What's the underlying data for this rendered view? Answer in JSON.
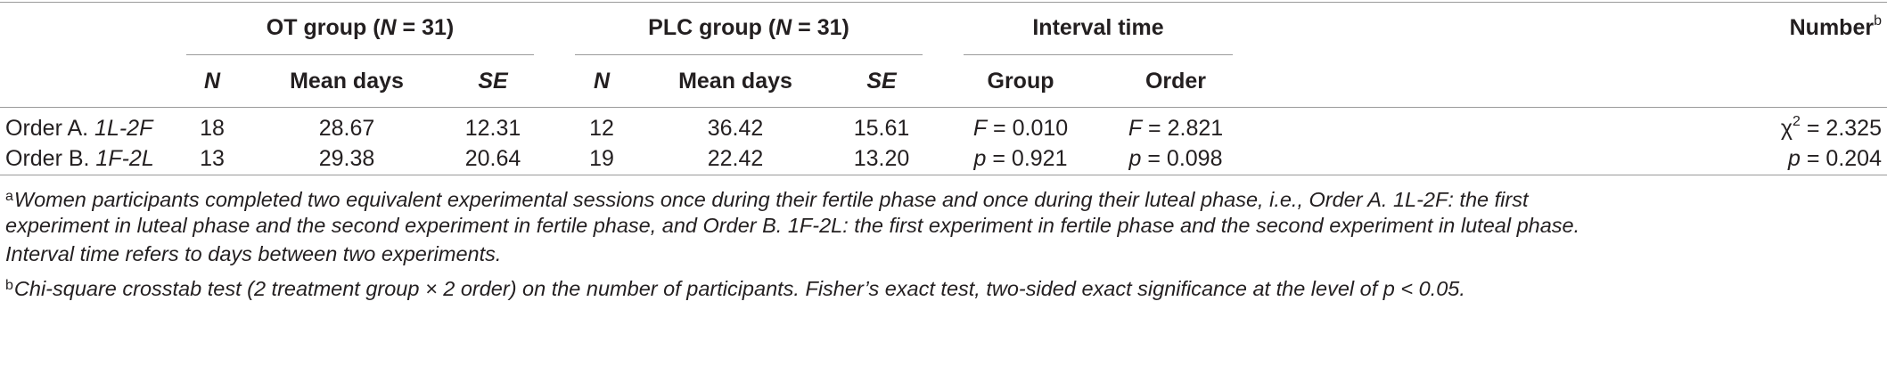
{
  "table": {
    "group_headers": {
      "ot_prefix": "OT group (",
      "ot_n": "N",
      "ot_suffix": " = 31)",
      "plc_prefix": "PLC group (",
      "plc_n": "N",
      "plc_suffix": " = 31)",
      "interval": "Interval time",
      "number": "Number",
      "number_sup": "b"
    },
    "sub_headers": {
      "ot_n": "N",
      "ot_mean": "Mean days",
      "ot_se": "SE",
      "plc_n": "N",
      "plc_mean": "Mean days",
      "plc_se": "SE",
      "group": "Group",
      "order": "Order"
    },
    "rows": [
      {
        "label_prefix": "Order A. ",
        "label_italic": "1L-2F",
        "ot_n": "18",
        "ot_mean": "28.67",
        "ot_se": "12.31",
        "plc_n": "12",
        "plc_mean": "36.42",
        "plc_se": "15.61",
        "group_var": "F",
        "group_val": " = 0.010",
        "order_var": "F",
        "order_val": " = 2.821",
        "number_prefix": "χ",
        "number_sup": "2",
        "number_val": " = 2.325"
      },
      {
        "label_prefix": "Order B. ",
        "label_italic": "1F-2L",
        "ot_n": "13",
        "ot_mean": "29.38",
        "ot_se": "20.64",
        "plc_n": "19",
        "plc_mean": "22.42",
        "plc_se": "13.20",
        "group_var": "p",
        "group_val": " = 0.921",
        "order_var": "p",
        "order_val": " = 0.098",
        "number_var": "p",
        "number_val": " = 0.204"
      }
    ]
  },
  "footnotes": {
    "a_mark": "a",
    "a_line1": "Women participants completed two equivalent experimental sessions once during their fertile phase and once during their luteal phase, i.e., Order A. 1L-2F: the first",
    "a_line2": "experiment in luteal phase and the second experiment in fertile phase, and Order B. 1F-2L: the first experiment in fertile phase and the second experiment in luteal phase.",
    "a_line3": "Interval time refers to days between two experiments.",
    "b_mark": "b",
    "b_line1": "Chi-square crosstab test (2 treatment group × 2 order) on the number of participants. Fisher’s exact test, two-sided exact significance at the level of p < 0.05."
  }
}
